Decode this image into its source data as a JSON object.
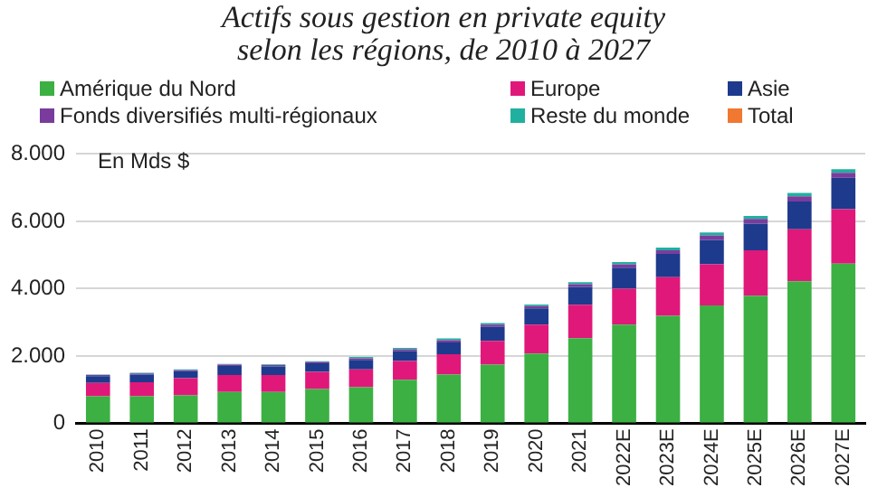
{
  "chart_data": {
    "type": "bar",
    "stacked": true,
    "title": "Actifs sous gestion en private equity\nselon les régions, de 2010 à 2027",
    "categories": [
      "2010",
      "2011",
      "2012",
      "2013",
      "2014",
      "2015",
      "2016",
      "2017",
      "2018",
      "2019",
      "2020",
      "2021",
      "2022E",
      "2023E",
      "2024E",
      "2025E",
      "2026E",
      "2027E"
    ],
    "series": [
      {
        "name": "Amérique du Nord",
        "color": "#3cb043",
        "values": [
          800,
          800,
          830,
          930,
          930,
          1020,
          1070,
          1290,
          1450,
          1740,
          2070,
          2530,
          2930,
          3190,
          3500,
          3790,
          4220,
          4740
        ]
      },
      {
        "name": "Europe",
        "color": "#e0187a",
        "values": [
          400,
          420,
          510,
          500,
          500,
          510,
          530,
          560,
          600,
          710,
          860,
          990,
          1070,
          1150,
          1220,
          1350,
          1540,
          1620
        ]
      },
      {
        "name": "Asie",
        "color": "#1e3a8c",
        "values": [
          200,
          230,
          210,
          270,
          260,
          250,
          280,
          290,
          350,
          410,
          480,
          530,
          620,
          690,
          730,
          790,
          830,
          930
        ]
      },
      {
        "name": "Fonds diversifiés multi-régionaux",
        "color": "#7a3c9c",
        "values": [
          30,
          30,
          30,
          40,
          40,
          40,
          50,
          60,
          70,
          70,
          70,
          80,
          100,
          110,
          130,
          140,
          150,
          150
        ]
      },
      {
        "name": "Reste du monde",
        "color": "#20b0a0",
        "values": [
          20,
          20,
          20,
          20,
          20,
          20,
          40,
          40,
          50,
          50,
          50,
          60,
          70,
          80,
          90,
          90,
          100,
          110
        ]
      },
      {
        "name": "Total",
        "color": "#f07830",
        "values": [
          null,
          null,
          null,
          null,
          null,
          null,
          null,
          null,
          null,
          null,
          null,
          null,
          null,
          null,
          null,
          null,
          null,
          null
        ]
      }
    ],
    "ylim": [
      0,
      8000
    ],
    "yticks": [
      0,
      {
        "value": 2000,
        "label": "2.000"
      },
      {
        "value": 4000,
        "label": "4.000"
      },
      {
        "value": 6000,
        "label": "6.000"
      },
      {
        "value": 8000,
        "label": "8.000"
      }
    ],
    "annotations": [
      "En Mds $"
    ],
    "grid": "y",
    "legend": "top"
  }
}
